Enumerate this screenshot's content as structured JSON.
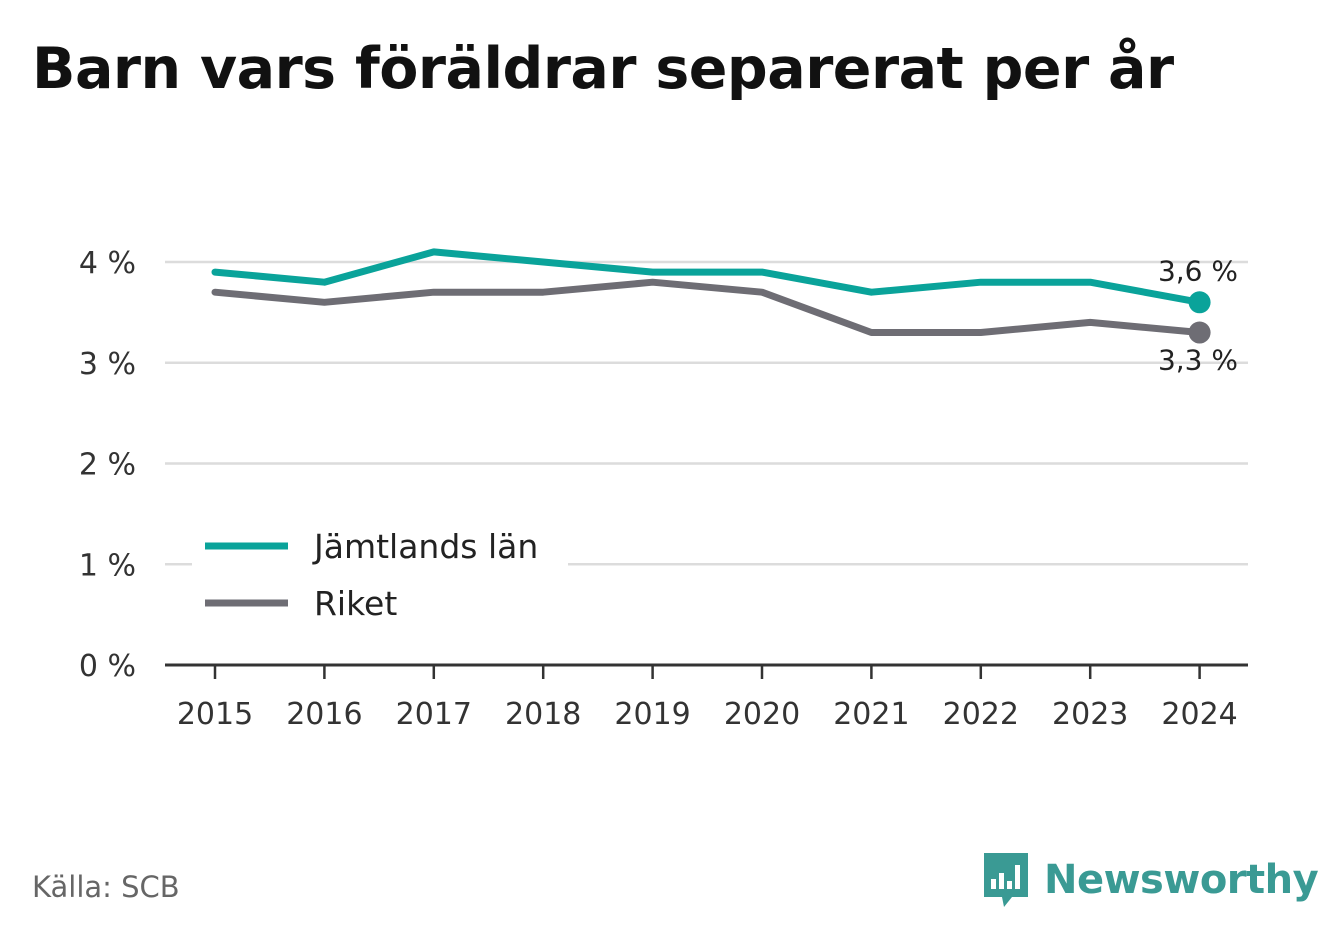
{
  "title": "Barn vars föräldrar separerat per år",
  "source": "Källa: SCB",
  "brand": {
    "name": "Newsworthy",
    "icon": "bar-chart-speech-bubble-icon",
    "color": "#3a9a94"
  },
  "chart_data": {
    "type": "line",
    "title": "Barn vars föräldrar separerat per år",
    "xlabel": "",
    "ylabel": "",
    "x": [
      "2015",
      "2016",
      "2017",
      "2018",
      "2019",
      "2020",
      "2021",
      "2022",
      "2023",
      "2024"
    ],
    "ylim": [
      0,
      4
    ],
    "y_ticks": [
      0,
      1,
      2,
      3,
      4
    ],
    "y_tick_labels": [
      "0 %",
      "1 %",
      "2 %",
      "3 %",
      "4 %"
    ],
    "grid": true,
    "legend_position": "bottom-left",
    "series": [
      {
        "name": "Jämtlands län",
        "color": "#0aa39a",
        "values": [
          3.9,
          3.8,
          4.1,
          4.0,
          3.9,
          3.9,
          3.7,
          3.8,
          3.8,
          3.6
        ],
        "end_label": "3,6 %"
      },
      {
        "name": "Riket",
        "color": "#6e6d74",
        "values": [
          3.7,
          3.6,
          3.7,
          3.7,
          3.8,
          3.7,
          3.3,
          3.3,
          3.4,
          3.3
        ],
        "end_label": "3,3 %"
      }
    ]
  }
}
